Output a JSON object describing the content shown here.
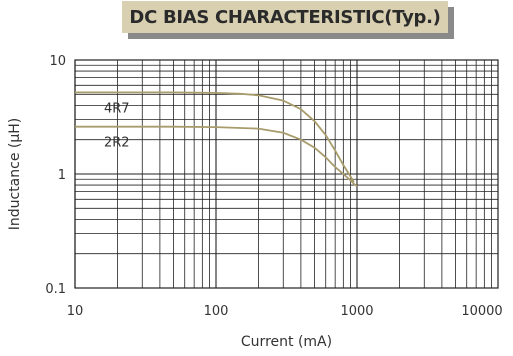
{
  "chart_data": {
    "type": "line",
    "title": "DC BIAS CHARACTERISTIC(Typ.)",
    "xlabel": "Current (mA)",
    "ylabel": "Inductance (μH)",
    "x_scale": "log",
    "y_scale": "log",
    "xlim": [
      10,
      10000
    ],
    "ylim": [
      0.1,
      10
    ],
    "x_ticks": [
      "10",
      "100",
      "1000",
      "10000"
    ],
    "y_ticks": [
      "10",
      "1",
      "0.1"
    ],
    "grid": true,
    "colors": {
      "series": "#a89c6c",
      "grid": "#222222"
    },
    "series": [
      {
        "name": "4R7",
        "x": [
          10,
          50,
          100,
          150,
          200,
          300,
          400,
          500,
          600,
          700,
          800,
          900,
          950
        ],
        "y": [
          5.2,
          5.2,
          5.15,
          5.05,
          4.9,
          4.4,
          3.7,
          2.9,
          2.2,
          1.6,
          1.2,
          0.95,
          0.85
        ]
      },
      {
        "name": "2R2",
        "x": [
          10,
          50,
          100,
          200,
          300,
          400,
          500,
          600,
          700,
          800,
          900,
          950,
          1000
        ],
        "y": [
          2.6,
          2.6,
          2.58,
          2.5,
          2.3,
          2.0,
          1.7,
          1.4,
          1.15,
          1.0,
          0.88,
          0.82,
          0.78
        ]
      }
    ]
  }
}
